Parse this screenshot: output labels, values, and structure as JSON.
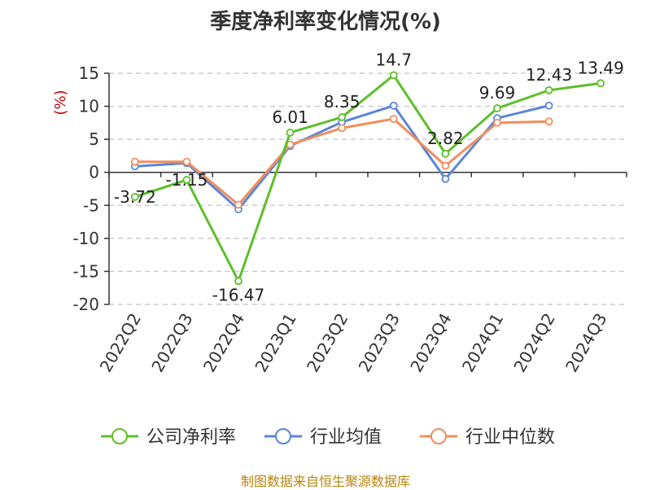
{
  "chart_data": {
    "type": "line",
    "title": "季度净利率变化情况(%)",
    "ylabel": "(%)",
    "xlabel": "",
    "categories": [
      "2022Q2",
      "2022Q3",
      "2022Q4",
      "2023Q1",
      "2023Q2",
      "2023Q3",
      "2023Q4",
      "2024Q1",
      "2024Q2",
      "2024Q3"
    ],
    "ylim": [
      -20,
      15
    ],
    "yticks": [
      15,
      10,
      5,
      0,
      -5,
      -10,
      -15,
      -20
    ],
    "grid": true,
    "legend_position": "bottom",
    "series": [
      {
        "name": "公司净利率",
        "color": "#5dbf2a",
        "values": [
          -3.72,
          -1.15,
          -16.47,
          6.01,
          8.35,
          14.7,
          2.82,
          9.69,
          12.43,
          13.49
        ],
        "labels": [
          "-3.72",
          "-1.15",
          "-16.47",
          "6.01",
          "8.35",
          "14.7",
          "2.82",
          "9.69",
          "12.43",
          "13.49"
        ]
      },
      {
        "name": "行业均值",
        "color": "#5b86d8",
        "values": [
          0.9,
          1.4,
          -5.6,
          4.0,
          7.6,
          10.1,
          -1.0,
          8.2,
          10.1,
          null
        ]
      },
      {
        "name": "行业中位数",
        "color": "#f28e5c",
        "values": [
          1.6,
          1.6,
          -4.9,
          4.2,
          6.7,
          8.1,
          1.0,
          7.5,
          7.7,
          null
        ]
      }
    ]
  },
  "footer": {
    "source": "制图数据来自恒生聚源数据库"
  }
}
